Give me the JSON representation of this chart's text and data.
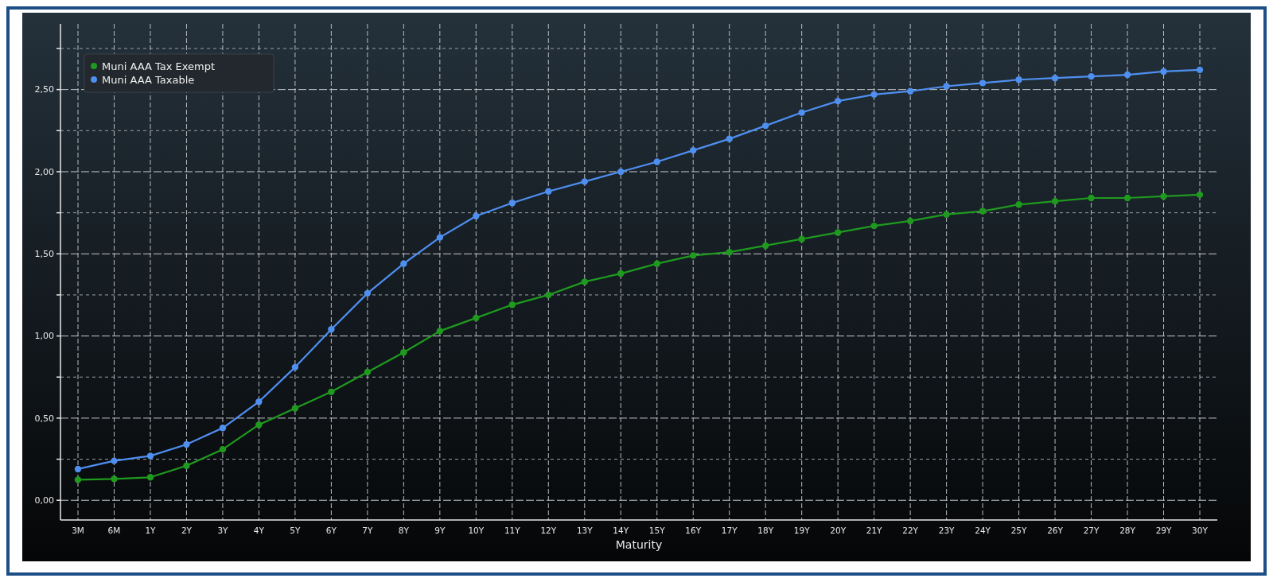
{
  "chart_data": {
    "type": "line",
    "xlabel": "Maturity",
    "categories": [
      "3M",
      "6M",
      "1Y",
      "2Y",
      "3Y",
      "4Y",
      "5Y",
      "6Y",
      "7Y",
      "8Y",
      "9Y",
      "10Y",
      "11Y",
      "12Y",
      "13Y",
      "14Y",
      "15Y",
      "16Y",
      "17Y",
      "18Y",
      "19Y",
      "20Y",
      "21Y",
      "22Y",
      "23Y",
      "24Y",
      "25Y",
      "26Y",
      "27Y",
      "28Y",
      "29Y",
      "30Y"
    ],
    "series": [
      {
        "name": "Muni AAA Tax Exempt",
        "color": "#1f9a1f",
        "values": [
          0.125,
          0.13,
          0.14,
          0.21,
          0.31,
          0.46,
          0.56,
          0.66,
          0.78,
          0.9,
          1.03,
          1.11,
          1.19,
          1.25,
          1.33,
          1.38,
          1.44,
          1.49,
          1.51,
          1.55,
          1.59,
          1.63,
          1.67,
          1.7,
          1.74,
          1.76,
          1.8,
          1.82,
          1.84,
          1.84,
          1.85,
          1.86
        ]
      },
      {
        "name": "Muni AAA Taxable",
        "color": "#4f8ff0",
        "values": [
          0.19,
          0.24,
          0.27,
          0.34,
          0.44,
          0.6,
          0.81,
          1.04,
          1.26,
          1.44,
          1.6,
          1.73,
          1.81,
          1.88,
          1.94,
          2.0,
          2.06,
          2.13,
          2.2,
          2.28,
          2.36,
          2.43,
          2.47,
          2.49,
          2.52,
          2.54,
          2.56,
          2.57,
          2.58,
          2.59,
          2.61,
          2.62
        ]
      }
    ],
    "ylim": [
      -0.12,
      2.9
    ],
    "yticks": [
      {
        "value": 0,
        "label": "0,00"
      },
      {
        "value": 0.25,
        "label": null
      },
      {
        "value": 0.5,
        "label": "0,50"
      },
      {
        "value": 0.75,
        "label": null
      },
      {
        "value": 1,
        "label": "1,00"
      },
      {
        "value": 1.25,
        "label": null
      },
      {
        "value": 1.5,
        "label": "1,50"
      },
      {
        "value": 1.75,
        "label": null
      },
      {
        "value": 2,
        "label": "2,00"
      },
      {
        "value": 2.25,
        "label": null
      },
      {
        "value": 2.5,
        "label": "2,50"
      },
      {
        "value": 2.75,
        "label": null
      }
    ],
    "grid": true,
    "legend": "top left",
    "marker": "circle",
    "line_style": "solid"
  }
}
